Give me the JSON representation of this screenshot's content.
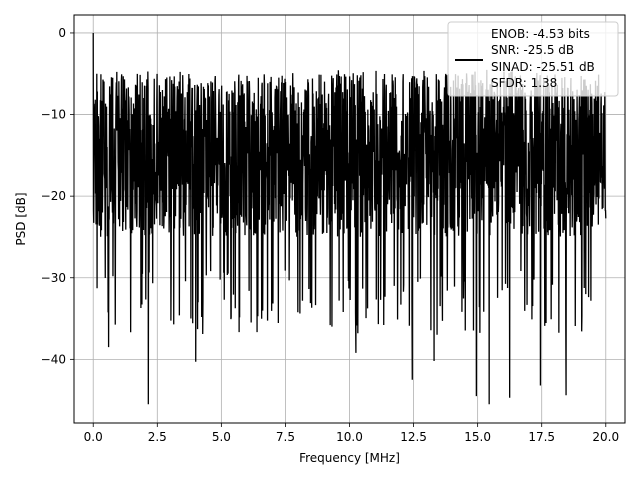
{
  "chart_data": {
    "type": "line",
    "xlabel": "Frequency [MHz]",
    "ylabel": "PSD [dB]",
    "xlim": [
      -0.75,
      20.75
    ],
    "ylim": [
      -47.8,
      2.2
    ],
    "x_ticks": [
      0.0,
      2.5,
      5.0,
      7.5,
      10.0,
      12.5,
      15.0,
      17.5,
      20.0
    ],
    "x_tick_labels": [
      "0.0",
      "2.5",
      "5.0",
      "7.5",
      "10.0",
      "12.5",
      "15.0",
      "17.5",
      "20.0"
    ],
    "y_ticks": [
      0,
      -10,
      -20,
      -30,
      -40
    ],
    "y_tick_labels": [
      "0",
      "−10",
      "−20",
      "−30",
      "−40"
    ],
    "grid": true,
    "legend_position": "top-right",
    "legend": [
      "ENOB: -4.53 bits",
      "SNR: -25.5 dB",
      "SINAD: -25.51 dB",
      "SFDR: 1.38"
    ],
    "series": [
      {
        "color": "#000000",
        "x_range": [
          0,
          20
        ],
        "points": 2000,
        "peak": {
          "x": 0.0,
          "y": 0
        },
        "typical_upper": -5,
        "typical_mean": -15,
        "typical_lower": -27,
        "notable_minima": [
          {
            "x": 0.6,
            "y": -38.5
          },
          {
            "x": 2.15,
            "y": -45.5
          },
          {
            "x": 4.0,
            "y": -40.3
          },
          {
            "x": 10.25,
            "y": -39.2
          },
          {
            "x": 12.45,
            "y": -42.5
          },
          {
            "x": 13.3,
            "y": -40.2
          },
          {
            "x": 14.95,
            "y": -44.5
          },
          {
            "x": 15.45,
            "y": -45.5
          },
          {
            "x": 16.25,
            "y": -44.7
          },
          {
            "x": 17.45,
            "y": -43.2
          },
          {
            "x": 18.45,
            "y": -44.4
          }
        ]
      }
    ]
  }
}
